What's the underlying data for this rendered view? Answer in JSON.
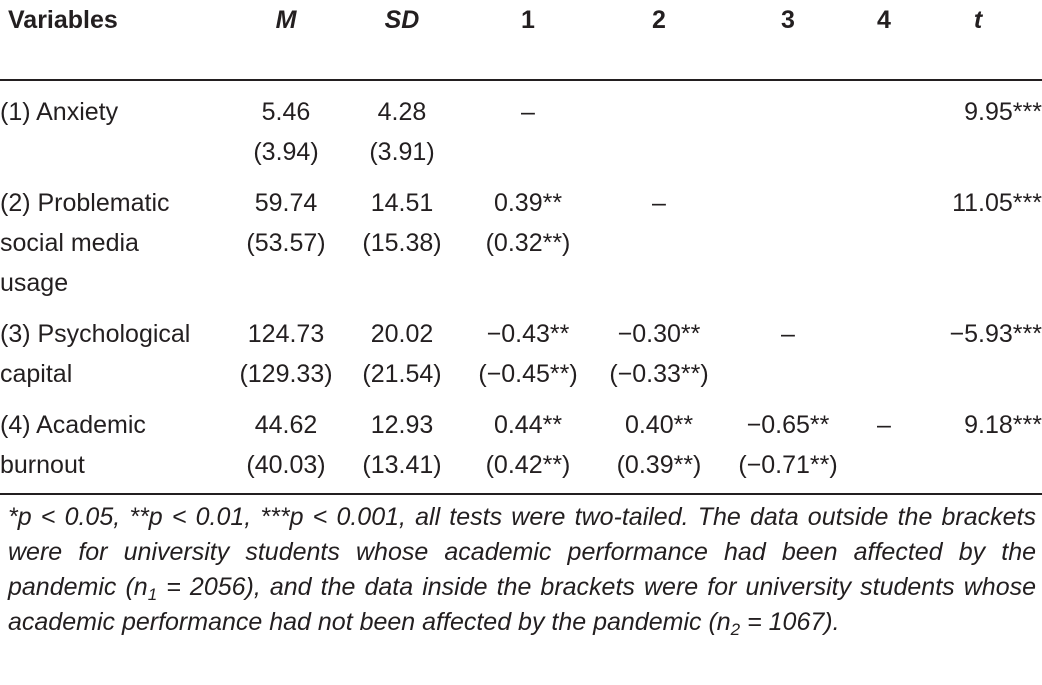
{
  "table": {
    "headers": [
      "Variables",
      "M",
      "SD",
      "1",
      "2",
      "3",
      "4",
      "t"
    ],
    "rows": [
      {
        "variable": [
          "(1) Anxiety"
        ],
        "m": [
          "5.46",
          "(3.94)"
        ],
        "sd": [
          "4.28",
          "(3.91)"
        ],
        "c1": [
          "–"
        ],
        "c2": [
          ""
        ],
        "c3": [
          ""
        ],
        "c4": [
          ""
        ],
        "t": [
          "9.95***"
        ]
      },
      {
        "variable": [
          "(2) Problematic",
          "social media",
          "usage"
        ],
        "m": [
          "59.74",
          "(53.57)"
        ],
        "sd": [
          "14.51",
          "(15.38)"
        ],
        "c1": [
          "0.39**",
          "(0.32**)"
        ],
        "c2": [
          "–"
        ],
        "c3": [
          ""
        ],
        "c4": [
          ""
        ],
        "t": [
          "11.05***"
        ]
      },
      {
        "variable": [
          "(3) Psychological",
          "capital"
        ],
        "m": [
          "124.73",
          "(129.33)"
        ],
        "sd": [
          "20.02",
          "(21.54)"
        ],
        "c1": [
          "−0.43**",
          "(−0.45**)"
        ],
        "c2": [
          "−0.30**",
          "(−0.33**)"
        ],
        "c3": [
          "–"
        ],
        "c4": [
          ""
        ],
        "t": [
          "−5.93***"
        ]
      },
      {
        "variable": [
          "(4) Academic",
          "burnout"
        ],
        "m": [
          "44.62",
          "(40.03)"
        ],
        "sd": [
          "12.93",
          "(13.41)"
        ],
        "c1": [
          "0.44**",
          "(0.42**)"
        ],
        "c2": [
          "0.40**",
          "(0.39**)"
        ],
        "c3": [
          "−0.65**",
          "(−0.71**)"
        ],
        "c4": [
          "–"
        ],
        "t": [
          "9.18***"
        ]
      }
    ]
  },
  "note": {
    "part1": "*p < 0.05, **p < 0.01, ***p < 0.001, all tests were two-tailed. The data outside the brackets were for university students whose academic performance had been affected by the pandemic (n",
    "sub1": "1",
    "part2": " = 2056), and the data inside the brackets were for university students whose academic performance had not been affected by the pandemic (n",
    "sub2": "2",
    "part3": " = 1067)."
  }
}
